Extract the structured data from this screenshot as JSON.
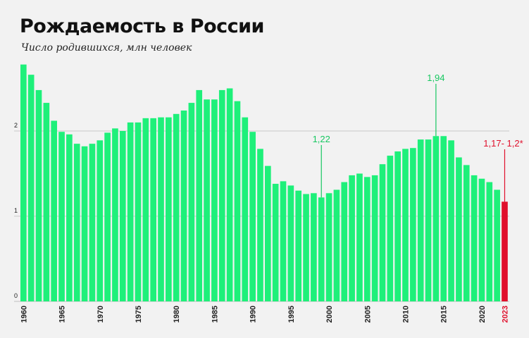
{
  "chart_data": {
    "type": "bar",
    "title": "Рождаемость в России",
    "subtitle": "Число родившихся, млн человек",
    "xlabel": "",
    "ylabel": "",
    "ylim": [
      0,
      2.75
    ],
    "yticks": [
      0,
      1,
      2
    ],
    "ytick_labels": [
      "0",
      "1",
      "2"
    ],
    "xtick_labels": [
      "1960",
      "1965",
      "1970",
      "1975",
      "1980",
      "1985",
      "1990",
      "1995",
      "2000",
      "2005",
      "2010",
      "2015",
      "2020",
      "2023"
    ],
    "grid": "horizontal",
    "colors": {
      "bar": "#1ef07a",
      "highlight": "#e0102c",
      "grid": "#c8c8c8",
      "axis_text": "#222222",
      "annotation_green": "#17c760",
      "annotation_red": "#e0102c"
    },
    "categories": [
      1960,
      1961,
      1962,
      1963,
      1964,
      1965,
      1966,
      1967,
      1968,
      1969,
      1970,
      1971,
      1972,
      1973,
      1974,
      1975,
      1976,
      1977,
      1978,
      1979,
      1980,
      1981,
      1982,
      1983,
      1984,
      1985,
      1986,
      1987,
      1988,
      1989,
      1990,
      1991,
      1992,
      1993,
      1994,
      1995,
      1996,
      1997,
      1998,
      1999,
      2000,
      2001,
      2002,
      2003,
      2004,
      2005,
      2006,
      2007,
      2008,
      2009,
      2010,
      2011,
      2012,
      2013,
      2014,
      2015,
      2016,
      2017,
      2018,
      2019,
      2020,
      2021,
      2022,
      2023
    ],
    "series": [
      {
        "values": [
          2.78,
          2.66,
          2.48,
          2.33,
          2.12,
          1.99,
          1.96,
          1.85,
          1.82,
          1.85,
          1.89,
          1.98,
          2.03,
          2.0,
          2.1,
          2.1,
          2.15,
          2.15,
          2.16,
          2.16,
          2.2,
          2.24,
          2.33,
          2.48,
          2.37,
          2.37,
          2.48,
          2.5,
          2.35,
          2.16,
          1.99,
          1.79,
          1.59,
          1.38,
          1.41,
          1.36,
          1.3,
          1.26,
          1.27,
          1.22,
          1.27,
          1.31,
          1.4,
          1.48,
          1.5,
          1.46,
          1.48,
          1.61,
          1.71,
          1.76,
          1.79,
          1.8,
          1.9,
          1.9,
          1.94,
          1.94,
          1.89,
          1.69,
          1.6,
          1.48,
          1.44,
          1.4,
          1.31,
          1.17
        ]
      }
    ],
    "highlight_category": 2023,
    "annotations": [
      {
        "x": 1999,
        "label": "1,22",
        "color": "green"
      },
      {
        "x": 2014,
        "label": "1,94",
        "color": "green"
      },
      {
        "x": 2023,
        "label": "1,17- 1,2*",
        "color": "red"
      }
    ]
  }
}
